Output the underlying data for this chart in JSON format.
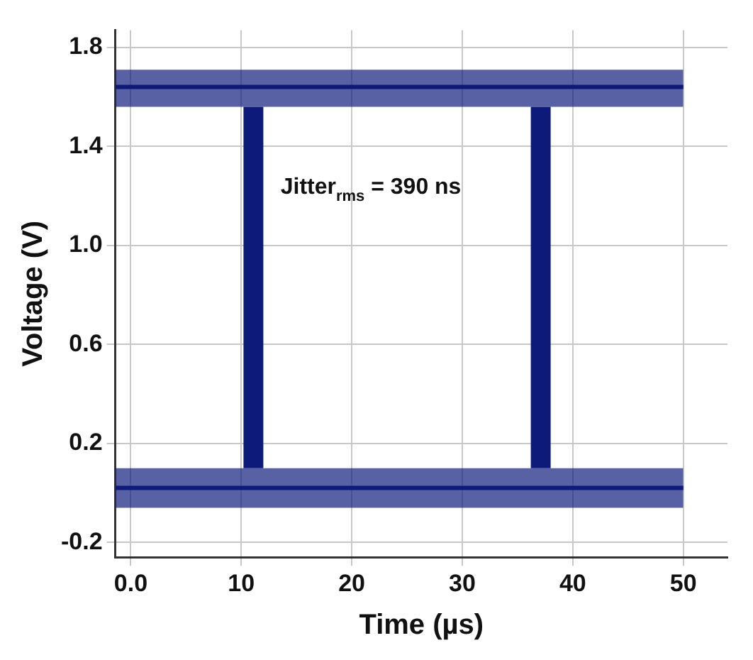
{
  "chart_data": {
    "type": "line",
    "xlabel": "Time (µs)",
    "ylabel": "Voltage (V)",
    "xlim": [
      -1.4,
      54
    ],
    "ylim": [
      -0.26,
      1.87
    ],
    "xticks": [
      {
        "value": 0,
        "label": "0.0"
      },
      10,
      20,
      30,
      40,
      50
    ],
    "yticks": [
      -0.2,
      0.2,
      0.6,
      {
        "value": 1,
        "label": "1.0"
      },
      1.4,
      1.8
    ],
    "series": [
      {
        "color": "#0d1a7a",
        "x": [
          -1.4,
          50
        ],
        "values": [
          1.64,
          1.64
        ],
        "lower": [
          1.56,
          1.56
        ],
        "upper": [
          1.71,
          1.71
        ]
      },
      {
        "color": "#0d1a7a",
        "x": [
          -1.4,
          50
        ],
        "values": [
          0.02,
          0.02
        ],
        "lower": [
          -0.06,
          -0.06
        ],
        "upper": [
          0.1,
          0.1
        ]
      },
      {
        "color": "#0d1a7a",
        "x": [
          11.1,
          11.1
        ],
        "values": [
          0.1,
          1.56
        ]
      },
      {
        "color": "#0d1a7a",
        "x": [
          37.1,
          37.1
        ],
        "values": [
          0.1,
          1.56
        ]
      }
    ],
    "annotations": [
      "Jitter$_{rms}$ = 390 ns"
    ],
    "grid": true,
    "legend": false,
    "marker": "none",
    "line_style": "solid"
  }
}
